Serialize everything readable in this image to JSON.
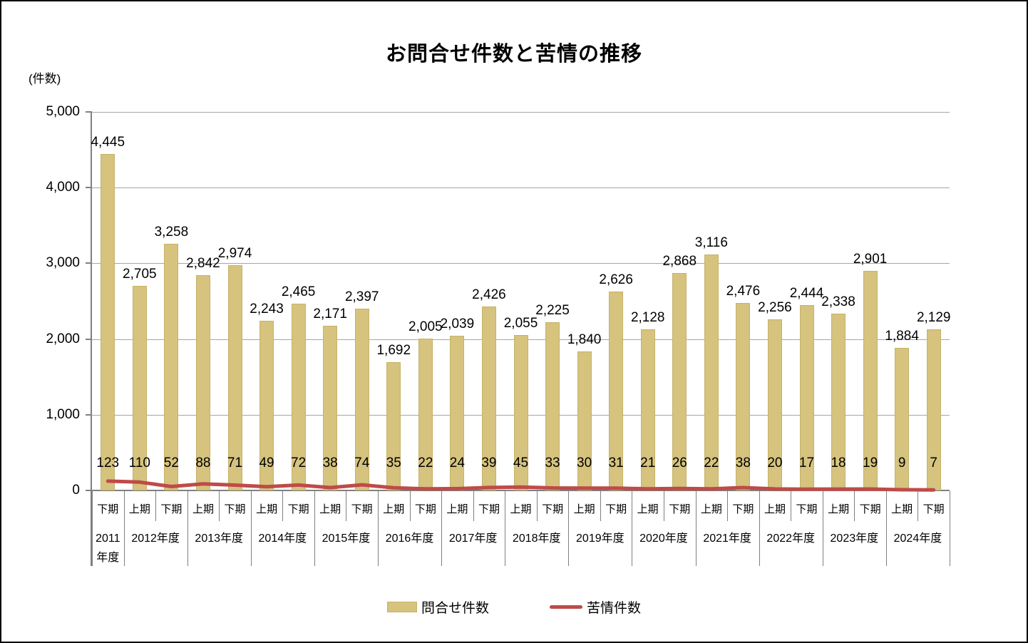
{
  "title": "お問合せ件数と苦情の推移",
  "y_axis": {
    "unit_label": "(件数)",
    "ticks": [
      0,
      1000,
      2000,
      3000,
      4000,
      5000
    ],
    "max": 5000
  },
  "legend": {
    "bar_label": "問合せ件数",
    "line_label": "苦情件数"
  },
  "colors": {
    "bar_fill": "#D5C37E",
    "bar_border": "#C6B26A",
    "line": "#BE4B48",
    "gridline": "#A6A6A6",
    "axis": "#808080",
    "text": "#000000"
  },
  "chart_data": {
    "type": "bar+line",
    "title": "お問合せ件数と苦情の推移",
    "ylabel": "(件数)",
    "ylim": [
      0,
      5000
    ],
    "grid": true,
    "legend_position": "bottom",
    "year_groups": [
      {
        "year": "2011年度",
        "periods": [
          "下期"
        ]
      },
      {
        "year": "2012年度",
        "periods": [
          "上期",
          "下期"
        ]
      },
      {
        "year": "2013年度",
        "periods": [
          "上期",
          "下期"
        ]
      },
      {
        "year": "2014年度",
        "periods": [
          "上期",
          "下期"
        ]
      },
      {
        "year": "2015年度",
        "periods": [
          "上期",
          "下期"
        ]
      },
      {
        "year": "2016年度",
        "periods": [
          "上期",
          "下期"
        ]
      },
      {
        "year": "2017年度",
        "periods": [
          "上期",
          "下期"
        ]
      },
      {
        "year": "2018年度",
        "periods": [
          "上期",
          "下期"
        ]
      },
      {
        "year": "2019年度",
        "periods": [
          "上期",
          "下期"
        ]
      },
      {
        "year": "2020年度",
        "periods": [
          "上期",
          "下期"
        ]
      },
      {
        "year": "2021年度",
        "periods": [
          "上期",
          "下期"
        ]
      },
      {
        "year": "2022年度",
        "periods": [
          "上期",
          "下期"
        ]
      },
      {
        "year": "2023年度",
        "periods": [
          "上期",
          "下期"
        ]
      },
      {
        "year": "2024年度",
        "periods": [
          "上期",
          "下期"
        ]
      }
    ],
    "series": [
      {
        "name": "問合せ件数",
        "type": "bar",
        "values": [
          4445,
          2705,
          3258,
          2842,
          2974,
          2243,
          2465,
          2171,
          2397,
          1692,
          2005,
          2039,
          2426,
          2055,
          2225,
          1840,
          2626,
          2128,
          2868,
          3116,
          2476,
          2256,
          2444,
          2338,
          2901,
          1884,
          2129
        ]
      },
      {
        "name": "苦情件数",
        "type": "line",
        "values": [
          123,
          110,
          52,
          88,
          71,
          49,
          72,
          38,
          74,
          35,
          22,
          24,
          39,
          45,
          33,
          30,
          31,
          21,
          26,
          22,
          38,
          20,
          17,
          18,
          19,
          9,
          7
        ]
      }
    ]
  }
}
